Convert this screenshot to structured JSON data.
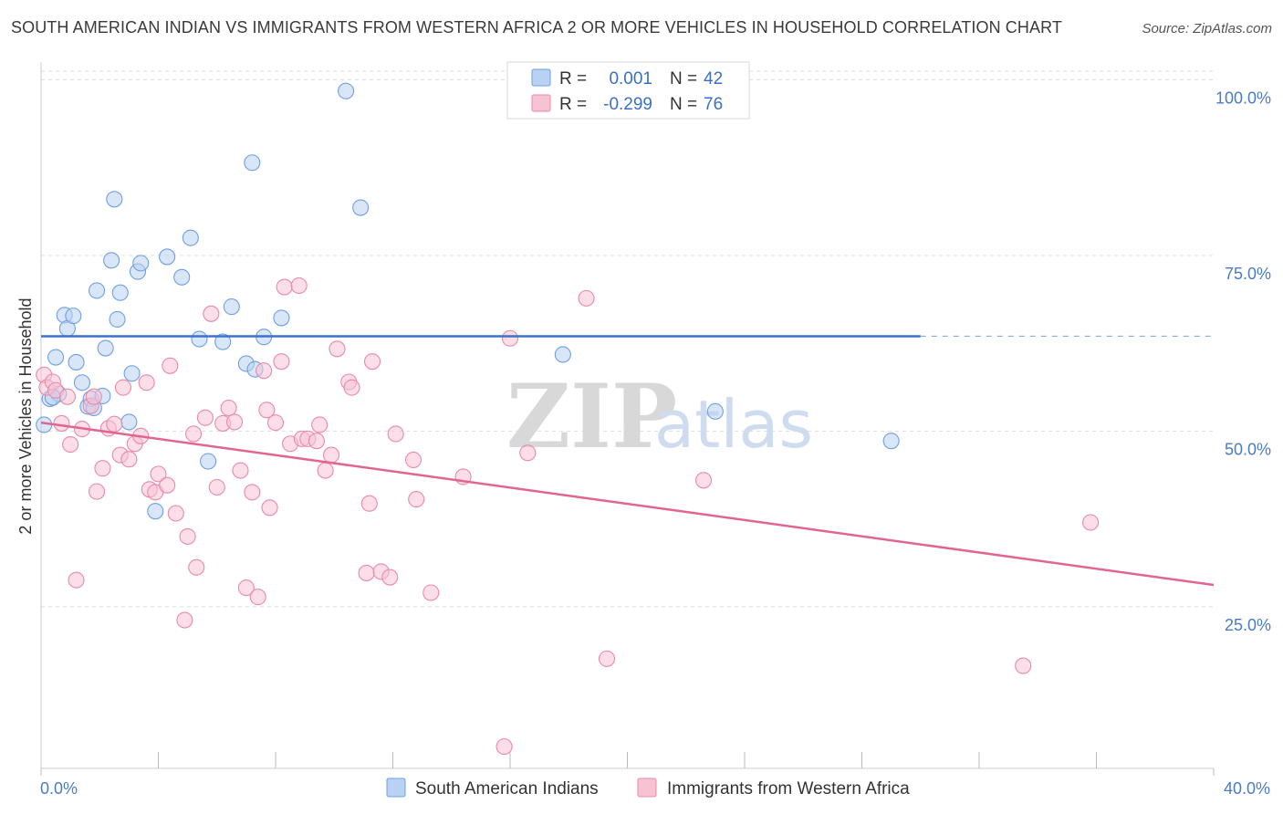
{
  "title": "SOUTH AMERICAN INDIAN VS IMMIGRANTS FROM WESTERN AFRICA 2 OR MORE VEHICLES IN HOUSEHOLD CORRELATION CHART",
  "source": "Source: ZipAtlas.com",
  "watermark": {
    "zip": "ZIP",
    "atlas": "atlas"
  },
  "colors": {
    "blue_fill": "#b9d1f3",
    "blue_stroke": "#6f9fe0",
    "blue_line": "#3a72cc",
    "pink_fill": "#f7c3d3",
    "pink_stroke": "#e88aa8",
    "pink_line": "#e06690",
    "grid": "#dddddd",
    "axis_text": "#4a7cc4"
  },
  "legend": {
    "entries": [
      {
        "r_label": "R =",
        "r_value": "0.001",
        "n_label": "N =",
        "n_value": "42"
      },
      {
        "r_label": "R =",
        "r_value": "-0.299",
        "n_label": "N =",
        "n_value": "76"
      }
    ]
  },
  "chart_data": {
    "type": "scatter",
    "title": "SOUTH AMERICAN INDIAN VS IMMIGRANTS FROM WESTERN AFRICA 2 OR MORE VEHICLES IN HOUSEHOLD CORRELATION CHART",
    "xlabel": "",
    "ylabel": "2 or more Vehicles in Household",
    "xlim": [
      0,
      40
    ],
    "ylim": [
      2,
      102
    ],
    "x_tick_labels": [
      {
        "value": 0,
        "label": "0.0%"
      },
      {
        "value": 40,
        "label": "40.0%"
      }
    ],
    "x_minor_ticks": [
      4,
      8,
      12,
      16,
      20,
      24,
      28,
      32,
      36
    ],
    "y_ticks": [
      {
        "value": 100,
        "label": "100.0%"
      },
      {
        "value": 75,
        "label": "75.0%"
      },
      {
        "value": 50,
        "label": "50.0%"
      },
      {
        "value": 25,
        "label": "25.0%"
      }
    ],
    "series": [
      {
        "name": "South American Indians",
        "color": "blue",
        "r": 0.001,
        "n": 42,
        "trend": {
          "x0": 0,
          "y0": 63.5,
          "x1": 30,
          "y1": 63.5,
          "dash_to": 40
        },
        "points": [
          [
            0.1,
            50.9
          ],
          [
            0.3,
            54.6
          ],
          [
            0.5,
            60.5
          ],
          [
            0.6,
            55.3
          ],
          [
            0.8,
            66.5
          ],
          [
            0.9,
            64.6
          ],
          [
            1.1,
            66.4
          ],
          [
            1.2,
            59.8
          ],
          [
            1.4,
            56.9
          ],
          [
            1.6,
            53.5
          ],
          [
            1.7,
            54.6
          ],
          [
            1.8,
            53.3
          ],
          [
            1.9,
            70.0
          ],
          [
            2.1,
            55.0
          ],
          [
            2.2,
            61.8
          ],
          [
            2.4,
            74.3
          ],
          [
            2.5,
            83.0
          ],
          [
            2.6,
            65.9
          ],
          [
            2.7,
            69.7
          ],
          [
            3.0,
            51.3
          ],
          [
            3.1,
            58.2
          ],
          [
            3.3,
            72.7
          ],
          [
            3.4,
            73.9
          ],
          [
            3.9,
            38.6
          ],
          [
            4.3,
            74.8
          ],
          [
            4.8,
            71.9
          ],
          [
            5.1,
            77.5
          ],
          [
            5.4,
            63.1
          ],
          [
            5.7,
            45.7
          ],
          [
            6.2,
            62.7
          ],
          [
            6.5,
            67.7
          ],
          [
            7.0,
            59.6
          ],
          [
            7.2,
            88.2
          ],
          [
            7.3,
            58.8
          ],
          [
            7.6,
            63.4
          ],
          [
            8.2,
            66.1
          ],
          [
            10.4,
            98.4
          ],
          [
            10.9,
            81.8
          ],
          [
            17.8,
            60.9
          ],
          [
            23.0,
            52.8
          ],
          [
            29.0,
            48.6
          ],
          [
            0.4,
            54.8
          ]
        ]
      },
      {
        "name": "Immigrants from Western Africa",
        "color": "pink",
        "r": -0.299,
        "n": 76,
        "trend": {
          "x0": 0,
          "y0": 51.2,
          "x1": 40,
          "y1": 28.1
        },
        "points": [
          [
            0.1,
            58.0
          ],
          [
            0.2,
            56.2
          ],
          [
            0.4,
            57.0
          ],
          [
            0.5,
            55.8
          ],
          [
            0.7,
            51.1
          ],
          [
            0.9,
            54.9
          ],
          [
            1.0,
            48.1
          ],
          [
            1.2,
            28.8
          ],
          [
            1.4,
            50.3
          ],
          [
            1.7,
            53.6
          ],
          [
            1.8,
            54.9
          ],
          [
            1.9,
            41.4
          ],
          [
            2.1,
            44.7
          ],
          [
            2.3,
            50.4
          ],
          [
            2.5,
            51.0
          ],
          [
            2.7,
            46.6
          ],
          [
            2.8,
            56.2
          ],
          [
            3.0,
            46.0
          ],
          [
            3.2,
            48.2
          ],
          [
            3.4,
            49.3
          ],
          [
            3.6,
            56.9
          ],
          [
            3.7,
            41.7
          ],
          [
            3.9,
            41.3
          ],
          [
            4.0,
            43.9
          ],
          [
            4.3,
            42.3
          ],
          [
            4.4,
            59.3
          ],
          [
            4.6,
            38.3
          ],
          [
            4.9,
            23.1
          ],
          [
            5.0,
            35.0
          ],
          [
            5.2,
            49.6
          ],
          [
            5.3,
            30.6
          ],
          [
            5.6,
            51.9
          ],
          [
            5.8,
            66.7
          ],
          [
            6.0,
            42.0
          ],
          [
            6.2,
            51.1
          ],
          [
            6.4,
            53.3
          ],
          [
            6.6,
            51.3
          ],
          [
            6.8,
            44.4
          ],
          [
            7.0,
            27.7
          ],
          [
            7.2,
            41.3
          ],
          [
            7.4,
            26.4
          ],
          [
            7.6,
            58.6
          ],
          [
            7.7,
            53.0
          ],
          [
            7.8,
            39.1
          ],
          [
            8.0,
            51.2
          ],
          [
            8.2,
            59.9
          ],
          [
            8.3,
            70.5
          ],
          [
            8.5,
            48.2
          ],
          [
            8.8,
            70.7
          ],
          [
            8.9,
            48.9
          ],
          [
            9.1,
            48.9
          ],
          [
            9.4,
            48.6
          ],
          [
            9.5,
            50.9
          ],
          [
            9.7,
            44.4
          ],
          [
            9.9,
            46.6
          ],
          [
            10.1,
            61.7
          ],
          [
            10.5,
            57.0
          ],
          [
            10.6,
            56.2
          ],
          [
            11.1,
            29.8
          ],
          [
            11.2,
            39.7
          ],
          [
            11.3,
            59.9
          ],
          [
            11.6,
            30.0
          ],
          [
            11.9,
            29.2
          ],
          [
            12.1,
            49.6
          ],
          [
            12.7,
            45.9
          ],
          [
            12.8,
            40.3
          ],
          [
            13.3,
            27.0
          ],
          [
            14.4,
            43.5
          ],
          [
            15.8,
            5.1
          ],
          [
            16.0,
            63.2
          ],
          [
            16.6,
            46.9
          ],
          [
            18.6,
            68.9
          ],
          [
            19.3,
            17.6
          ],
          [
            22.6,
            43.0
          ],
          [
            33.5,
            16.6
          ],
          [
            35.8,
            37.0
          ]
        ]
      }
    ]
  },
  "bottom_legend": [
    {
      "label": "South American Indians"
    },
    {
      "label": "Immigrants from Western Africa"
    }
  ]
}
